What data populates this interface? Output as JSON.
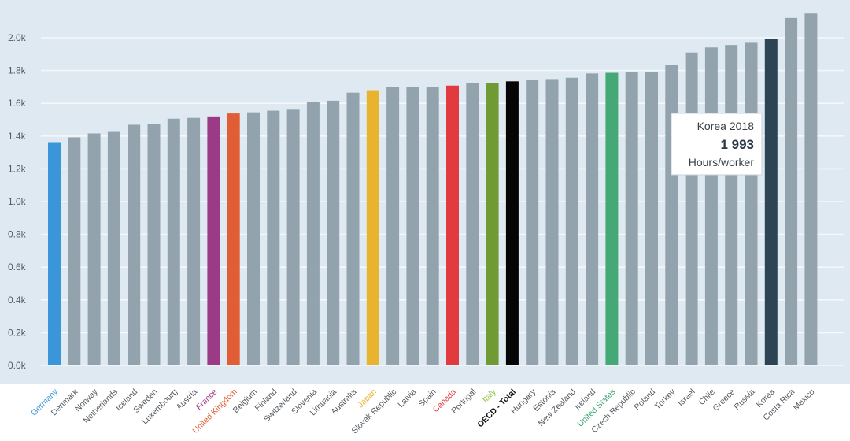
{
  "chart_data": {
    "type": "bar",
    "ylim": [
      0,
      2200
    ],
    "yticks": [
      {
        "value": 0,
        "label": "0.0k"
      },
      {
        "value": 200,
        "label": "0.2k"
      },
      {
        "value": 400,
        "label": "0.4k"
      },
      {
        "value": 600,
        "label": "0.6k"
      },
      {
        "value": 800,
        "label": "0.8k"
      },
      {
        "value": 1000,
        "label": "1.0k"
      },
      {
        "value": 1200,
        "label": "1.2k"
      },
      {
        "value": 1400,
        "label": "1.4k"
      },
      {
        "value": 1600,
        "label": "1.6k"
      },
      {
        "value": 1800,
        "label": "1.8k"
      },
      {
        "value": 2000,
        "label": "2.0k"
      }
    ],
    "grid": true,
    "categories": [
      "Germany",
      "Denmark",
      "Norway",
      "Netherlands",
      "Iceland",
      "Sweden",
      "Luxembourg",
      "Austria",
      "France",
      "United Kingdom",
      "Belgium",
      "Finland",
      "Switzerland",
      "Slovenia",
      "Lithuania",
      "Australia",
      "Japan",
      "Slovak Republic",
      "Latvia",
      "Spain",
      "Canada",
      "Portugal",
      "Italy",
      "OECD - Total",
      "Hungary",
      "Estonia",
      "New Zealand",
      "Ireland",
      "United States",
      "Czech Republic",
      "Poland",
      "Turkey",
      "Israel",
      "Chile",
      "Greece",
      "Russia",
      "Korea",
      "Costa Rica",
      "Mexico"
    ],
    "values": [
      1363,
      1392,
      1416,
      1430,
      1469,
      1474,
      1506,
      1511,
      1520,
      1538,
      1545,
      1555,
      1561,
      1606,
      1616,
      1665,
      1680,
      1698,
      1699,
      1701,
      1708,
      1722,
      1723,
      1734,
      1741,
      1748,
      1756,
      1782,
      1786,
      1792,
      1792,
      1832,
      1910,
      1941,
      1956,
      1974,
      1993,
      2121,
      2148
    ],
    "highlights": {
      "Germany": "#3a95d9",
      "France": "#9b3b86",
      "United Kingdom": "#e05d35",
      "Japan": "#e8b32e",
      "Canada": "#e23b3f",
      "Italy": "#6f9a34",
      "OECD - Total": "#050505",
      "United States": "#44a877",
      "Korea": "#2c4454"
    },
    "label_colors": {
      "Germany": "#3a95d9",
      "France": "#9b3b86",
      "United Kingdom": "#e05d35",
      "Japan": "#e8b32e",
      "Canada": "#e23b3f",
      "Italy": "#8fbf3f",
      "OECD - Total": "#111111",
      "United States": "#44a877"
    },
    "bold_labels": [
      "OECD - Total"
    ],
    "default_bar_color": "#93a3ad",
    "label_color": "#555b60",
    "plot_background": "#dfe9f2",
    "grid_color": "#f4f8fb",
    "tooltip": {
      "category": "Korea",
      "line1": "Korea 2018",
      "line2": "1 993",
      "line3": "Hours/worker"
    }
  }
}
